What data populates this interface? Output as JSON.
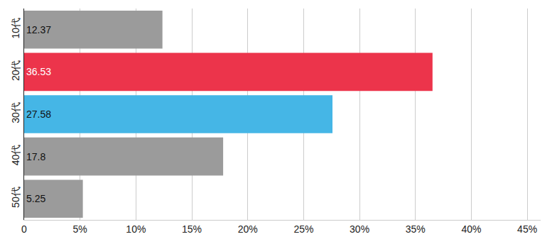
{
  "chart_data": {
    "type": "bar",
    "orientation": "horizontal",
    "categories": [
      "10代",
      "20代",
      "30代",
      "40代",
      "50代"
    ],
    "values": [
      12.37,
      36.53,
      27.58,
      17.8,
      5.25
    ],
    "colors": [
      "#9b9b9b",
      "#ec344b",
      "#45b6e6",
      "#9b9b9b",
      "#9b9b9b"
    ],
    "xlim": [
      0,
      46.2
    ],
    "xticks": [
      0,
      {
        "value": 5,
        "label": "5%"
      },
      {
        "value": 10,
        "label": "10%"
      },
      {
        "value": 15,
        "label": "15%"
      },
      {
        "value": 20,
        "label": "20%"
      },
      {
        "value": 25,
        "label": "25%"
      },
      {
        "value": 30,
        "label": "30%"
      },
      {
        "value": 35,
        "label": "35%"
      },
      {
        "value": 40,
        "label": "40%"
      },
      {
        "value": 45,
        "label": "45%"
      }
    ],
    "grid": true,
    "data_labels": true
  }
}
